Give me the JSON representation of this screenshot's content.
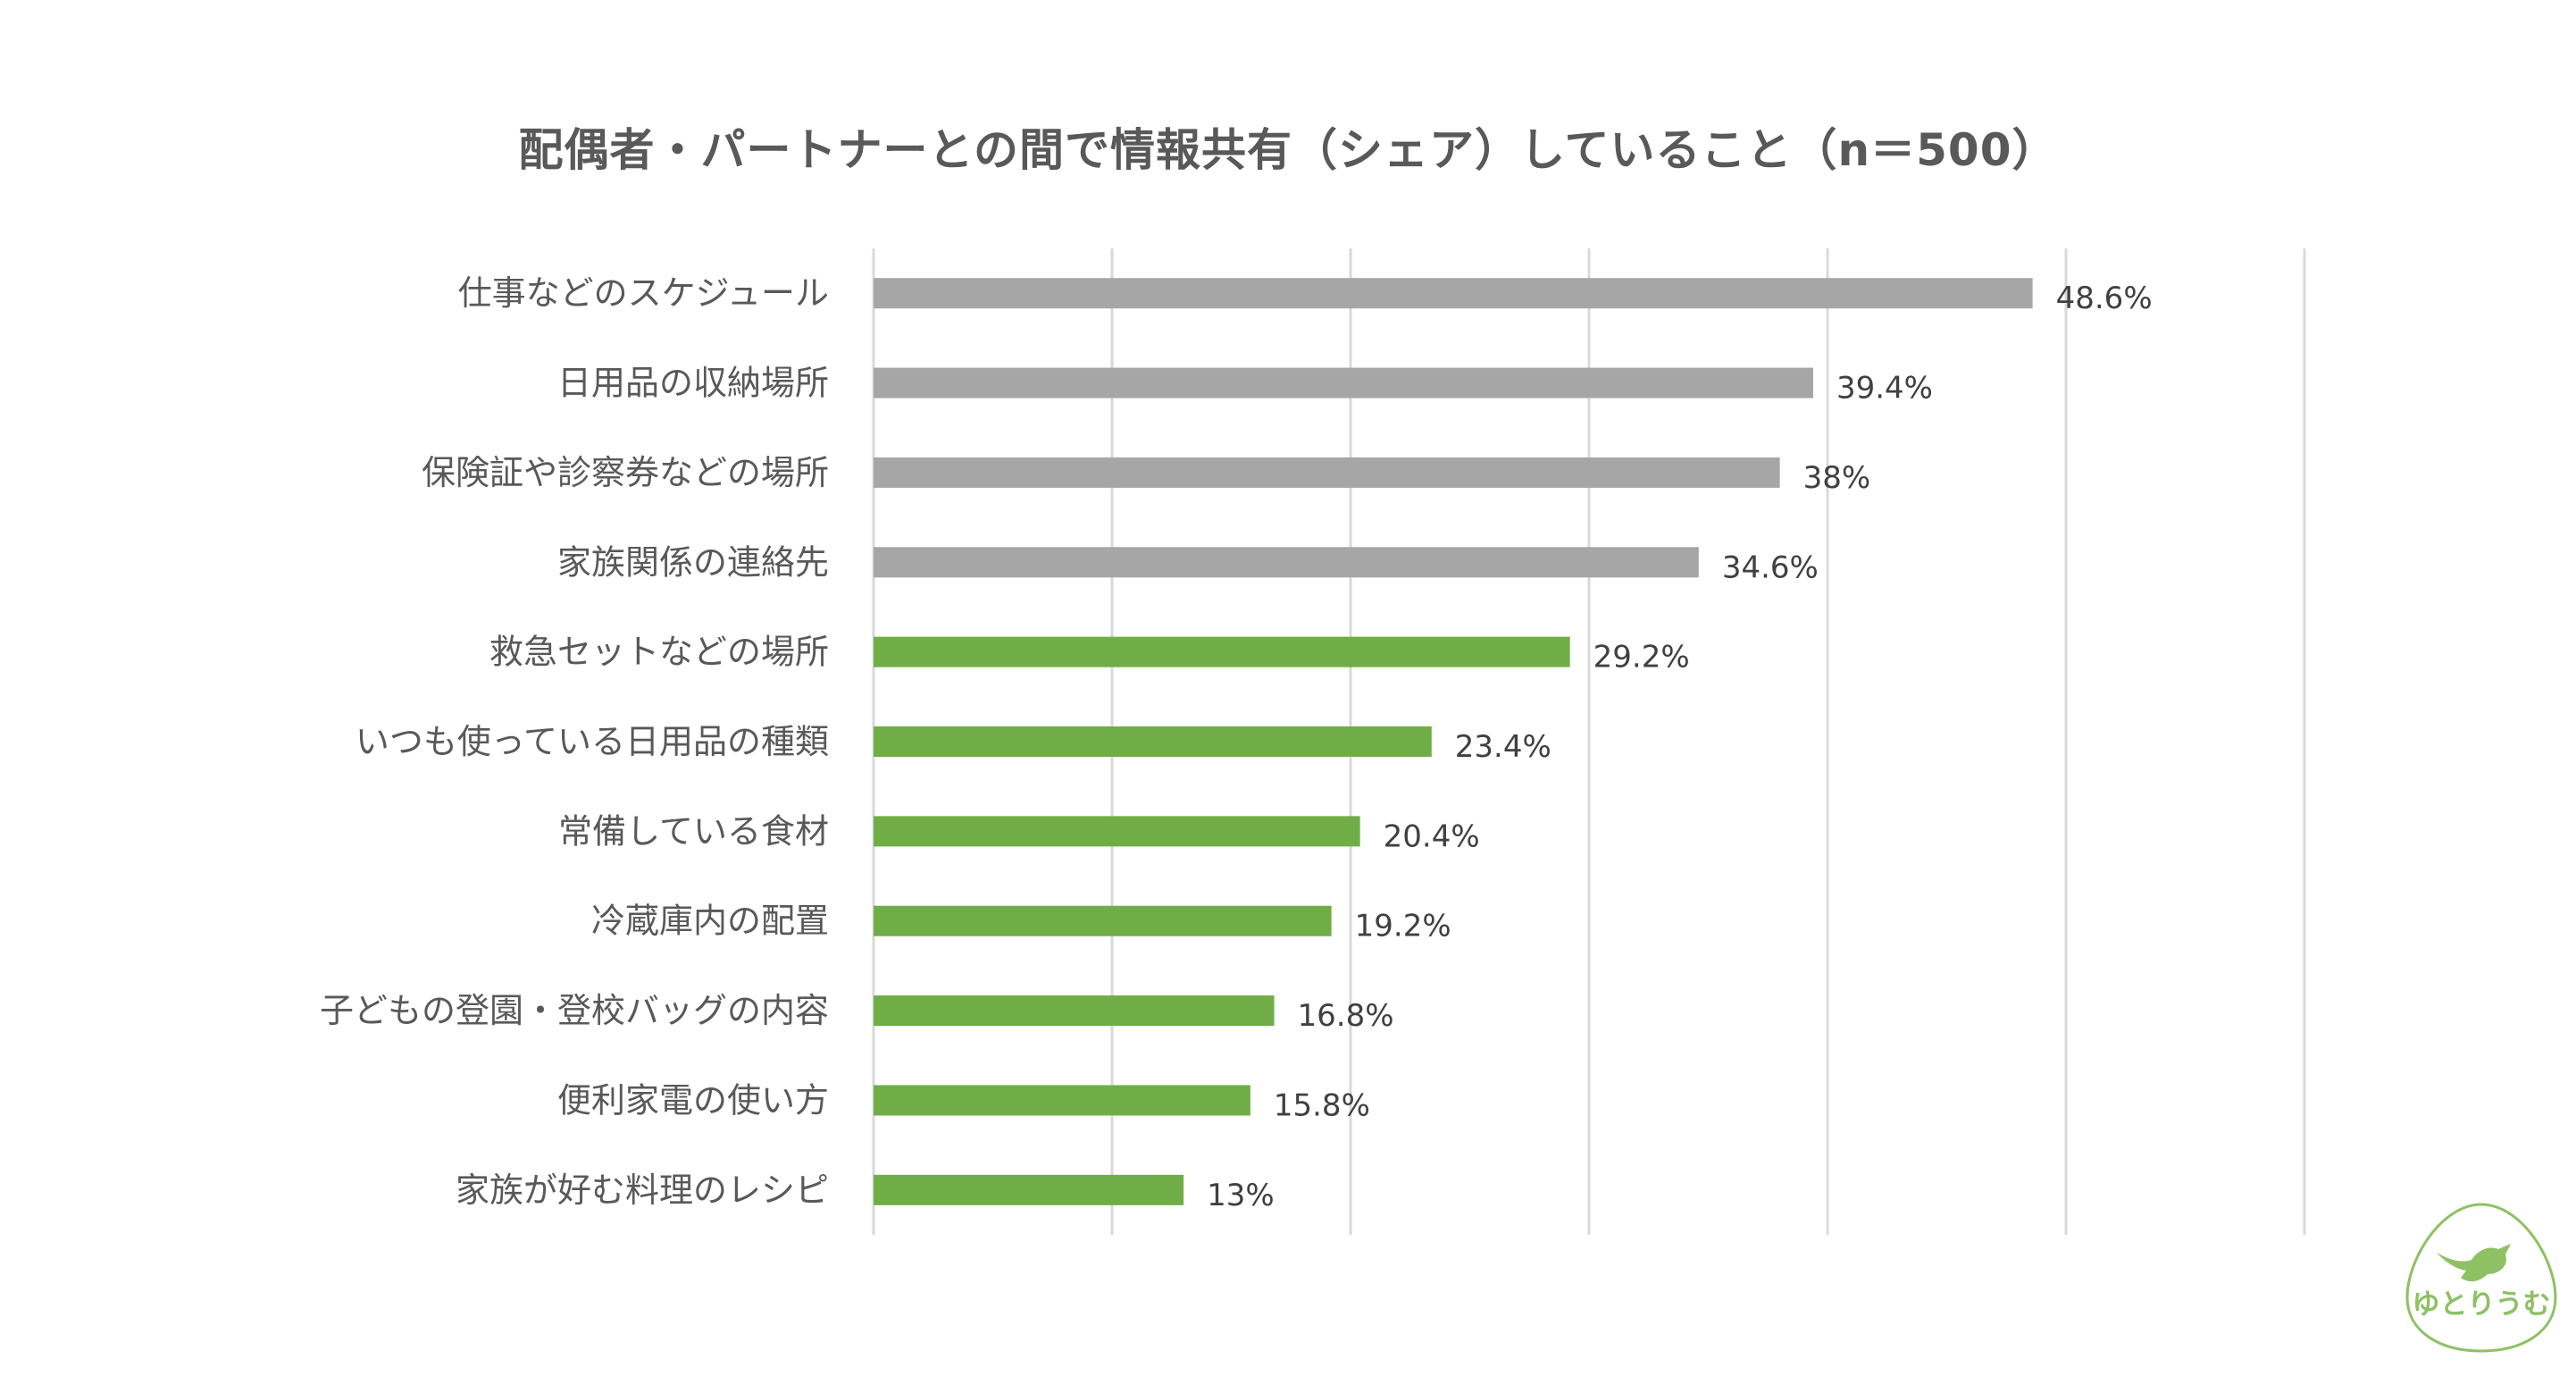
{
  "chart_data": {
    "type": "bar",
    "orientation": "horizontal",
    "title": "配偶者・パートナーとの間で情報共有（シェア）していること（n＝500）",
    "categories": [
      "仕事などのスケジュール",
      "日用品の収納場所",
      "保険証や診察券などの場所",
      "家族関係の連絡先",
      "救急セットなどの場所",
      "いつも使っている日用品の種類",
      "常備している食材",
      "冷蔵庫内の配置",
      "子どもの登園・登校バッグの内容",
      "便利家電の使い方",
      "家族が好む料理のレシピ"
    ],
    "values": [
      48.6,
      39.4,
      38,
      34.6,
      29.2,
      23.4,
      20.4,
      19.2,
      16.8,
      15.8,
      13
    ],
    "value_labels": [
      "48.6%",
      "39.4%",
      "38%",
      "34.6%",
      "29.2%",
      "23.4%",
      "20.4%",
      "19.2%",
      "16.8%",
      "15.8%",
      "13%"
    ],
    "bar_colors": [
      "#a6a6a6",
      "#a6a6a6",
      "#a6a6a6",
      "#a6a6a6",
      "#70ad47",
      "#70ad47",
      "#70ad47",
      "#70ad47",
      "#70ad47",
      "#70ad47",
      "#70ad47"
    ],
    "xlim": [
      0,
      60
    ],
    "grid_step": 10,
    "grid": true,
    "legend": "none",
    "xlabel": "",
    "ylabel": ""
  },
  "logo": {
    "text": "ゆとりうむ",
    "color": "#8dc163"
  }
}
